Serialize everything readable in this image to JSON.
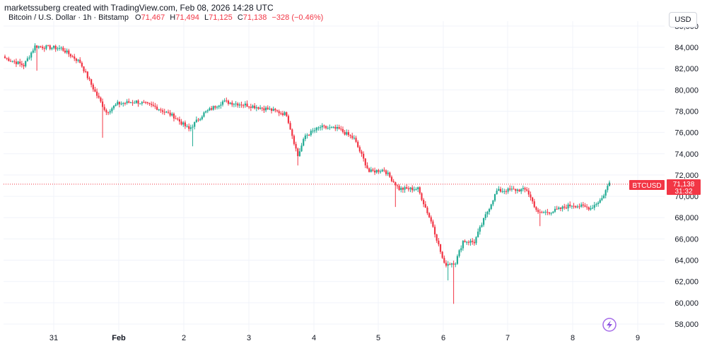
{
  "header": {
    "text": "marketssuberg created with TradingView.com, Feb 08, 2026 14:28 UTC"
  },
  "legend": {
    "symbol": "Bitcoin / U.S. Dollar · 1h · Bitstamp",
    "o_label": "O",
    "o_value": "71,467",
    "h_label": "H",
    "h_value": "71,494",
    "l_label": "L",
    "l_value": "71,125",
    "c_label": "C",
    "c_value": "71,138",
    "change": "−328 (−0.46%)"
  },
  "currency_button": "USD",
  "price_tag": {
    "symbol": "BTCUSD",
    "price": "71,138",
    "countdown": "31:32"
  },
  "colors": {
    "up": "#22ab94",
    "down": "#f23645",
    "grid": "#f0f3fa",
    "last_line": "#f23645"
  },
  "logo_icon": "tradingview-lightning-icon",
  "chart_data": {
    "type": "candlestick",
    "y_ticks": [
      "58,000",
      "60,000",
      "62,000",
      "64,000",
      "66,000",
      "68,000",
      "70,000",
      "72,000",
      "74,000",
      "76,000",
      "78,000",
      "80,000",
      "82,000",
      "84,000",
      "86,000"
    ],
    "x_ticks": [
      "31",
      "Feb",
      "2",
      "3",
      "4",
      "5",
      "6",
      "7",
      "8",
      "9"
    ],
    "ylim": [
      57000,
      86500
    ],
    "last_price": 71138,
    "anchors": [
      {
        "i": 0,
        "p": 83000
      },
      {
        "i": 10,
        "p": 82300
      },
      {
        "i": 16,
        "p": 84100
      },
      {
        "i": 30,
        "p": 83900
      },
      {
        "i": 40,
        "p": 82600
      },
      {
        "i": 48,
        "p": 79800
      },
      {
        "i": 54,
        "p": 77900
      },
      {
        "i": 60,
        "p": 78700
      },
      {
        "i": 70,
        "p": 78900
      },
      {
        "i": 80,
        "p": 78400
      },
      {
        "i": 90,
        "p": 77500
      },
      {
        "i": 98,
        "p": 76300
      },
      {
        "i": 106,
        "p": 77800
      },
      {
        "i": 116,
        "p": 78900
      },
      {
        "i": 128,
        "p": 78600
      },
      {
        "i": 140,
        "p": 78200
      },
      {
        "i": 150,
        "p": 77700
      },
      {
        "i": 156,
        "p": 73800
      },
      {
        "i": 160,
        "p": 75700
      },
      {
        "i": 168,
        "p": 76500
      },
      {
        "i": 178,
        "p": 76300
      },
      {
        "i": 186,
        "p": 75400
      },
      {
        "i": 194,
        "p": 72300
      },
      {
        "i": 202,
        "p": 72500
      },
      {
        "i": 210,
        "p": 70700
      },
      {
        "i": 220,
        "p": 70700
      },
      {
        "i": 228,
        "p": 67200
      },
      {
        "i": 234,
        "p": 63600
      },
      {
        "i": 240,
        "p": 63800
      },
      {
        "i": 244,
        "p": 65800
      },
      {
        "i": 250,
        "p": 65700
      },
      {
        "i": 256,
        "p": 68200
      },
      {
        "i": 262,
        "p": 70500
      },
      {
        "i": 270,
        "p": 70600
      },
      {
        "i": 278,
        "p": 70600
      },
      {
        "i": 284,
        "p": 68400
      },
      {
        "i": 292,
        "p": 68600
      },
      {
        "i": 302,
        "p": 69200
      },
      {
        "i": 312,
        "p": 68900
      },
      {
        "i": 318,
        "p": 69800
      },
      {
        "i": 322,
        "p": 71300
      }
    ],
    "spikes": [
      {
        "i": 17,
        "low": 81800
      },
      {
        "i": 52,
        "low": 75500
      },
      {
        "i": 100,
        "low": 74700
      },
      {
        "i": 156,
        "low": 72900
      },
      {
        "i": 236,
        "low": 62100
      },
      {
        "i": 239,
        "low": 59900
      },
      {
        "i": 285,
        "low": 67200
      },
      {
        "i": 208,
        "low": 69000
      }
    ]
  }
}
